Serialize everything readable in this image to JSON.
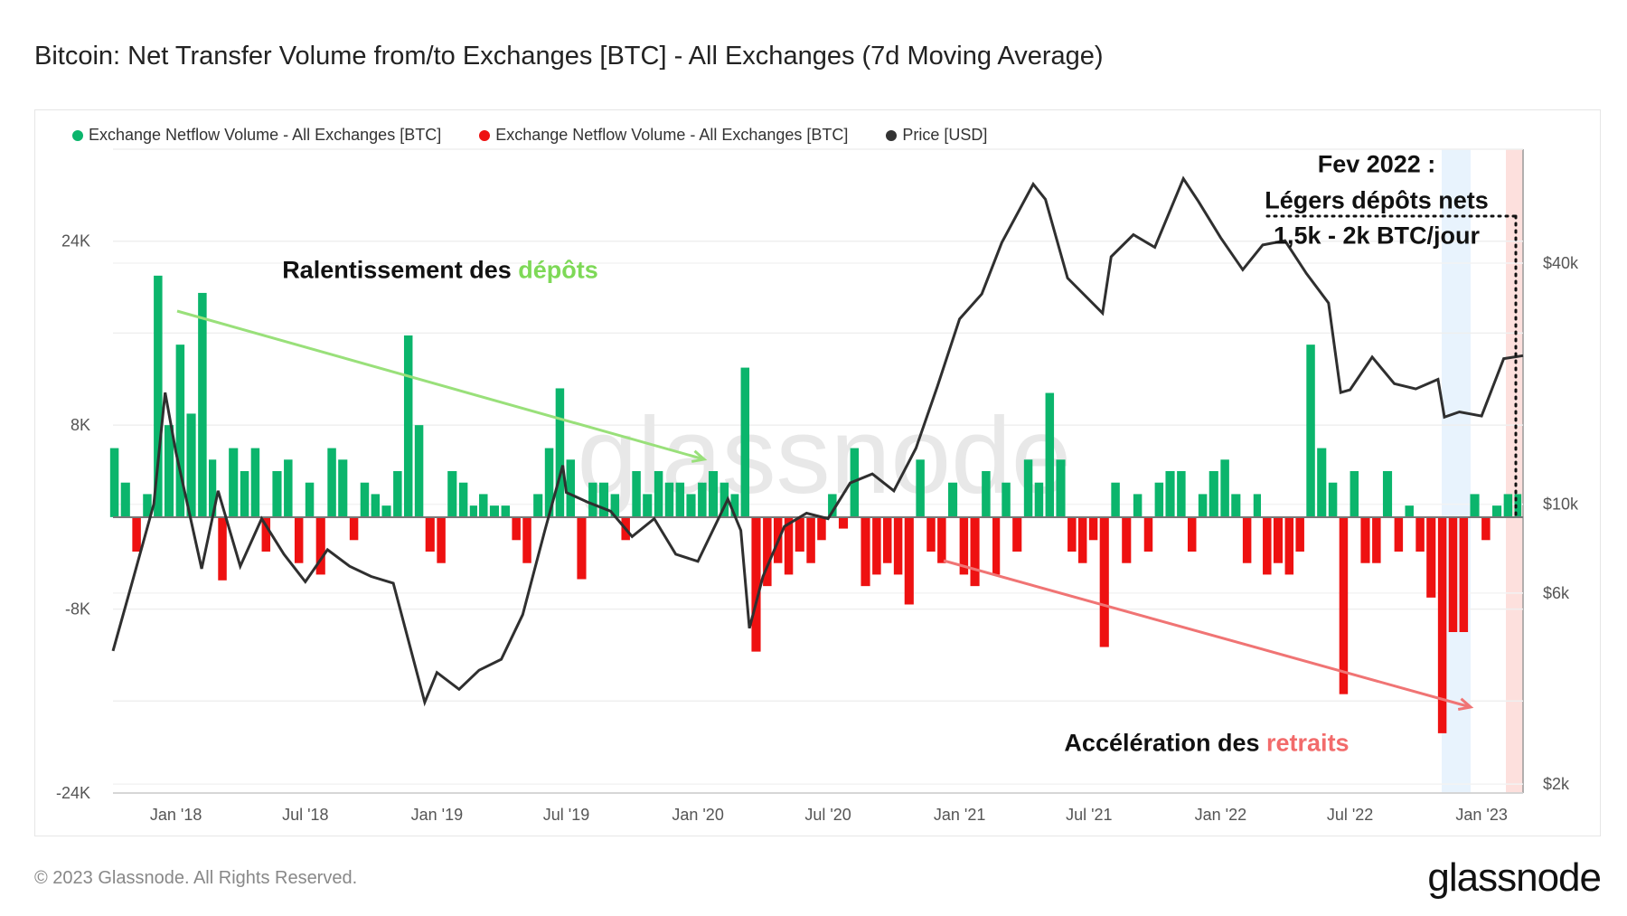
{
  "title": "Bitcoin: Net Transfer Volume from/to Exchanges [BTC] - All Exchanges (7d Moving Average)",
  "legend": [
    {
      "label": "Exchange Netflow Volume - All Exchanges [BTC]",
      "color": "#0bb56c"
    },
    {
      "label": "Exchange Netflow Volume - All Exchanges [BTC]",
      "color": "#ee1111"
    },
    {
      "label": "Price [USD]",
      "color": "#333333"
    }
  ],
  "annotations": {
    "deposits": {
      "prefix": "Ralentissement des ",
      "highlight": "dépôts",
      "color": "#7ed957",
      "arrow_color": "#99e07a"
    },
    "withdrawals": {
      "prefix": "Accélération des ",
      "highlight": "retraits",
      "color": "#f26b6b",
      "arrow_color": "#f07474"
    },
    "fev_title": "Fev 2022 :",
    "fev_line1": "Légers dépôts nets",
    "fev_line2": "1,5k - 2k BTC/jour",
    "highlight_colors": {
      "blue": "#e8f3fd",
      "red": "#fde0dd"
    }
  },
  "watermark": "glassnode",
  "footer": "© 2023 Glassnode. All Rights Reserved.",
  "logo": "glassnode",
  "chart_data": {
    "type": "bar+line",
    "title": "Bitcoin: Net Transfer Volume from/to Exchanges [BTC] - All Exchanges (7d Moving Average)",
    "x_ticks": [
      "Jan '18",
      "Jul '18",
      "Jan '19",
      "Jul '19",
      "Jan '20",
      "Jul '20",
      "Jan '21",
      "Jul '21",
      "Jan '22",
      "Jul '22",
      "Jan '23"
    ],
    "x_tick_dates": [
      "2018-01-01",
      "2018-07-01",
      "2019-01-01",
      "2019-07-01",
      "2020-01-01",
      "2020-07-01",
      "2021-01-01",
      "2021-07-01",
      "2022-01-01",
      "2022-07-01",
      "2023-01-01"
    ],
    "x_range": [
      "2017-10-05",
      "2023-02-28"
    ],
    "y_left": {
      "ticks": [
        "24K",
        "8K",
        "-8K",
        "-24K"
      ],
      "tick_values": [
        24000,
        8000,
        -8000,
        -24000
      ],
      "range": [
        -24000,
        32000
      ],
      "grid": true
    },
    "y_right": {
      "ticks": [
        "$40k",
        "$10k",
        "$6k",
        "$2k"
      ],
      "tick_values": [
        40000,
        10000,
        6000,
        2000
      ],
      "scale": "log",
      "range": [
        1900,
        77000
      ]
    },
    "netflow": [
      [
        "2017-10-01",
        6000
      ],
      [
        "2017-10-16",
        3000
      ],
      [
        "2017-11-01",
        -3000
      ],
      [
        "2017-11-16",
        2000
      ],
      [
        "2017-12-01",
        21000
      ],
      [
        "2017-12-16",
        8000
      ],
      [
        "2018-01-01",
        15000
      ],
      [
        "2018-01-16",
        9000
      ],
      [
        "2018-02-01",
        19500
      ],
      [
        "2018-02-16",
        5000
      ],
      [
        "2018-03-01",
        -5500
      ],
      [
        "2018-03-16",
        6000
      ],
      [
        "2018-04-01",
        4000
      ],
      [
        "2018-04-16",
        6000
      ],
      [
        "2018-05-01",
        -3000
      ],
      [
        "2018-05-16",
        4000
      ],
      [
        "2018-06-01",
        5000
      ],
      [
        "2018-06-16",
        -4000
      ],
      [
        "2018-07-01",
        3000
      ],
      [
        "2018-07-16",
        -5000
      ],
      [
        "2018-08-01",
        6000
      ],
      [
        "2018-08-16",
        5000
      ],
      [
        "2018-09-01",
        -2000
      ],
      [
        "2018-09-16",
        3000
      ],
      [
        "2018-10-01",
        2000
      ],
      [
        "2018-10-16",
        1000
      ],
      [
        "2018-11-01",
        4000
      ],
      [
        "2018-11-16",
        15800
      ],
      [
        "2018-12-01",
        8000
      ],
      [
        "2018-12-16",
        -3000
      ],
      [
        "2019-01-01",
        -4000
      ],
      [
        "2019-01-16",
        4000
      ],
      [
        "2019-02-01",
        3000
      ],
      [
        "2019-02-16",
        1000
      ],
      [
        "2019-03-01",
        2000
      ],
      [
        "2019-03-16",
        1000
      ],
      [
        "2019-04-01",
        1000
      ],
      [
        "2019-04-16",
        -2000
      ],
      [
        "2019-05-01",
        -4000
      ],
      [
        "2019-05-16",
        2000
      ],
      [
        "2019-06-01",
        6000
      ],
      [
        "2019-06-16",
        11200
      ],
      [
        "2019-07-01",
        5000
      ],
      [
        "2019-07-16",
        -5400
      ],
      [
        "2019-08-01",
        3000
      ],
      [
        "2019-08-16",
        3000
      ],
      [
        "2019-09-01",
        2000
      ],
      [
        "2019-09-16",
        -2000
      ],
      [
        "2019-10-01",
        4000
      ],
      [
        "2019-10-16",
        2000
      ],
      [
        "2019-11-01",
        4000
      ],
      [
        "2019-11-16",
        3000
      ],
      [
        "2019-12-01",
        3000
      ],
      [
        "2019-12-16",
        2000
      ],
      [
        "2020-01-01",
        3000
      ],
      [
        "2020-01-16",
        4000
      ],
      [
        "2020-02-01",
        3000
      ],
      [
        "2020-02-16",
        2000
      ],
      [
        "2020-03-01",
        13000
      ],
      [
        "2020-03-16",
        -11700
      ],
      [
        "2020-04-01",
        -6000
      ],
      [
        "2020-04-16",
        -4000
      ],
      [
        "2020-05-01",
        -5000
      ],
      [
        "2020-05-16",
        -3000
      ],
      [
        "2020-06-01",
        -4000
      ],
      [
        "2020-06-16",
        -2000
      ],
      [
        "2020-07-01",
        2000
      ],
      [
        "2020-07-16",
        -1000
      ],
      [
        "2020-08-01",
        6000
      ],
      [
        "2020-08-16",
        -6000
      ],
      [
        "2020-09-01",
        -5000
      ],
      [
        "2020-09-16",
        -4000
      ],
      [
        "2020-10-01",
        -5000
      ],
      [
        "2020-10-16",
        -7600
      ],
      [
        "2020-11-01",
        5000
      ],
      [
        "2020-11-16",
        -3000
      ],
      [
        "2020-12-01",
        -4000
      ],
      [
        "2020-12-16",
        3000
      ],
      [
        "2021-01-01",
        -5000
      ],
      [
        "2021-01-16",
        -6000
      ],
      [
        "2021-02-01",
        4000
      ],
      [
        "2021-02-16",
        -5000
      ],
      [
        "2021-03-01",
        3000
      ],
      [
        "2021-03-16",
        -3000
      ],
      [
        "2021-04-01",
        5000
      ],
      [
        "2021-04-16",
        3000
      ],
      [
        "2021-05-01",
        10800
      ],
      [
        "2021-05-16",
        5000
      ],
      [
        "2021-06-01",
        -3000
      ],
      [
        "2021-06-16",
        -4000
      ],
      [
        "2021-07-01",
        -2000
      ],
      [
        "2021-07-16",
        -11300
      ],
      [
        "2021-08-01",
        3000
      ],
      [
        "2021-08-16",
        -4000
      ],
      [
        "2021-09-01",
        2000
      ],
      [
        "2021-09-16",
        -3000
      ],
      [
        "2021-10-01",
        3000
      ],
      [
        "2021-10-16",
        4000
      ],
      [
        "2021-11-01",
        4000
      ],
      [
        "2021-11-16",
        -3000
      ],
      [
        "2021-12-01",
        2000
      ],
      [
        "2021-12-16",
        4000
      ],
      [
        "2022-01-01",
        5000
      ],
      [
        "2022-01-16",
        2000
      ],
      [
        "2022-02-01",
        -4000
      ],
      [
        "2022-02-16",
        2000
      ],
      [
        "2022-03-01",
        -5000
      ],
      [
        "2022-03-16",
        -4000
      ],
      [
        "2022-04-01",
        -5000
      ],
      [
        "2022-04-16",
        -3000
      ],
      [
        "2022-05-01",
        15000
      ],
      [
        "2022-05-16",
        6000
      ],
      [
        "2022-06-01",
        3000
      ],
      [
        "2022-06-16",
        -15400
      ],
      [
        "2022-07-01",
        4000
      ],
      [
        "2022-07-16",
        -4000
      ],
      [
        "2022-08-01",
        -4000
      ],
      [
        "2022-08-16",
        4000
      ],
      [
        "2022-09-01",
        -3000
      ],
      [
        "2022-09-16",
        1000
      ],
      [
        "2022-10-01",
        -3000
      ],
      [
        "2022-10-16",
        -7000
      ],
      [
        "2022-11-01",
        -18800
      ],
      [
        "2022-11-16",
        -10000
      ],
      [
        "2022-12-01",
        -10000
      ],
      [
        "2022-12-16",
        2000
      ],
      [
        "2023-01-01",
        -2000
      ],
      [
        "2023-01-16",
        1000
      ],
      [
        "2023-02-01",
        2000
      ],
      [
        "2023-02-16",
        2000
      ]
    ],
    "price": [
      [
        "2017-10-05",
        4300
      ],
      [
        "2017-11-01",
        6400
      ],
      [
        "2017-12-01",
        10000
      ],
      [
        "2017-12-17",
        19000
      ],
      [
        "2018-01-01",
        13500
      ],
      [
        "2018-02-06",
        6900
      ],
      [
        "2018-03-01",
        10800
      ],
      [
        "2018-04-01",
        7000
      ],
      [
        "2018-05-01",
        9200
      ],
      [
        "2018-06-01",
        7500
      ],
      [
        "2018-07-01",
        6400
      ],
      [
        "2018-08-01",
        7700
      ],
      [
        "2018-09-01",
        7000
      ],
      [
        "2018-10-01",
        6600
      ],
      [
        "2018-11-01",
        6350
      ],
      [
        "2018-12-15",
        3200
      ],
      [
        "2019-01-01",
        3800
      ],
      [
        "2019-02-01",
        3450
      ],
      [
        "2019-03-01",
        3850
      ],
      [
        "2019-04-01",
        4100
      ],
      [
        "2019-05-01",
        5300
      ],
      [
        "2019-06-01",
        8600
      ],
      [
        "2019-06-26",
        12500
      ],
      [
        "2019-07-01",
        10700
      ],
      [
        "2019-08-01",
        10100
      ],
      [
        "2019-09-01",
        9600
      ],
      [
        "2019-10-01",
        8300
      ],
      [
        "2019-11-01",
        9200
      ],
      [
        "2019-12-01",
        7500
      ],
      [
        "2020-01-01",
        7200
      ],
      [
        "2020-02-12",
        10300
      ],
      [
        "2020-03-01",
        8600
      ],
      [
        "2020-03-13",
        4900
      ],
      [
        "2020-04-01",
        6600
      ],
      [
        "2020-05-01",
        8800
      ],
      [
        "2020-06-01",
        9500
      ],
      [
        "2020-07-01",
        9200
      ],
      [
        "2020-08-01",
        11300
      ],
      [
        "2020-09-01",
        11900
      ],
      [
        "2020-10-01",
        10800
      ],
      [
        "2020-11-01",
        13800
      ],
      [
        "2020-12-01",
        19700
      ],
      [
        "2021-01-01",
        29000
      ],
      [
        "2021-02-01",
        33500
      ],
      [
        "2021-03-01",
        45000
      ],
      [
        "2021-04-14",
        63000
      ],
      [
        "2021-05-01",
        57700
      ],
      [
        "2021-06-01",
        36700
      ],
      [
        "2021-07-20",
        30000
      ],
      [
        "2021-08-01",
        41500
      ],
      [
        "2021-09-01",
        47100
      ],
      [
        "2021-10-01",
        43800
      ],
      [
        "2021-11-10",
        65000
      ],
      [
        "2021-12-01",
        57000
      ],
      [
        "2022-01-01",
        46300
      ],
      [
        "2022-02-01",
        38500
      ],
      [
        "2022-03-01",
        44400
      ],
      [
        "2022-04-01",
        45500
      ],
      [
        "2022-05-01",
        37700
      ],
      [
        "2022-06-01",
        31800
      ],
      [
        "2022-06-18",
        19000
      ],
      [
        "2022-07-01",
        19300
      ],
      [
        "2022-08-01",
        23300
      ],
      [
        "2022-09-01",
        20000
      ],
      [
        "2022-10-01",
        19400
      ],
      [
        "2022-11-01",
        20500
      ],
      [
        "2022-11-10",
        16500
      ],
      [
        "2022-12-01",
        17000
      ],
      [
        "2023-01-01",
        16600
      ],
      [
        "2023-02-01",
        23100
      ],
      [
        "2023-02-28",
        23500
      ]
    ]
  }
}
